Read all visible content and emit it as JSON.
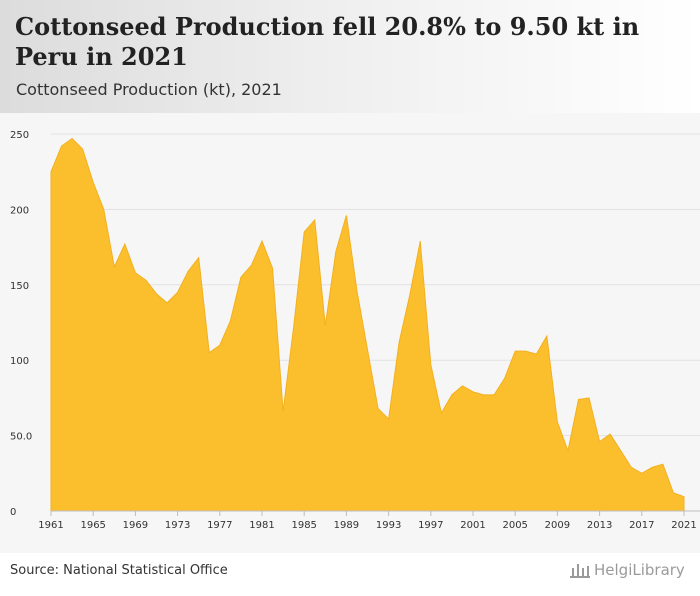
{
  "header": {
    "title": "Cottonseed Production fell 20.8% to 9.50 kt in Peru in 2021",
    "subtitle": "Cottonseed Production (kt), 2021"
  },
  "footer": {
    "source": "Source: National Statistical Office",
    "logo_text": "HelgiLibrary"
  },
  "colors": {
    "area_fill": "#fbbf2e",
    "area_stroke": "#f3b01e",
    "plot_background": "#f6f6f6"
  },
  "chart_data": {
    "type": "area",
    "title": "",
    "xlabel": "",
    "ylabel": "",
    "x": [
      1961,
      1962,
      1963,
      1964,
      1965,
      1966,
      1967,
      1968,
      1969,
      1970,
      1971,
      1972,
      1973,
      1974,
      1975,
      1976,
      1977,
      1978,
      1979,
      1980,
      1981,
      1982,
      1983,
      1984,
      1985,
      1986,
      1987,
      1988,
      1989,
      1990,
      1991,
      1992,
      1993,
      1994,
      1995,
      1996,
      1997,
      1998,
      1999,
      2000,
      2001,
      2002,
      2003,
      2004,
      2005,
      2006,
      2007,
      2008,
      2009,
      2010,
      2011,
      2012,
      2013,
      2014,
      2015,
      2016,
      2017,
      2018,
      2019,
      2020,
      2021
    ],
    "series": [
      {
        "values": [
          225,
          242,
          247,
          240,
          218,
          200,
          162,
          177,
          158,
          153,
          144,
          138,
          145,
          159,
          168,
          105,
          110,
          126,
          155,
          163,
          179,
          161,
          66,
          122,
          185,
          193,
          123,
          172,
          196,
          146,
          107,
          68,
          61,
          112,
          143,
          179,
          97,
          65,
          77,
          83,
          79,
          77,
          77,
          88,
          106,
          106,
          104,
          116,
          59,
          40,
          74,
          75,
          46,
          51,
          40,
          29,
          25,
          29,
          31,
          12,
          9.5
        ]
      }
    ],
    "ylim": [
      0,
      250
    ],
    "y_ticks": [
      0,
      50,
      100,
      150,
      200,
      250
    ],
    "y_tick_labels": [
      "0",
      "50.0",
      "100",
      "150",
      "200",
      "250"
    ],
    "x_ticks": [
      1961,
      1965,
      1969,
      1973,
      1977,
      1981,
      1985,
      1989,
      1993,
      1997,
      2001,
      2005,
      2009,
      2013,
      2017,
      2021
    ],
    "grid": true,
    "legend": "none"
  }
}
